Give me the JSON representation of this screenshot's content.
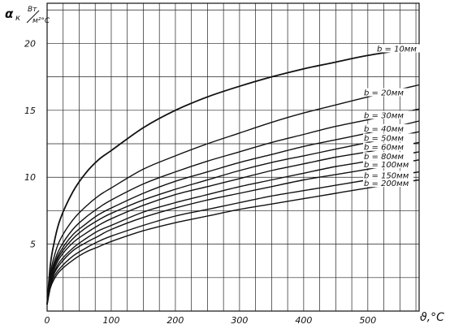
{
  "chart_data": {
    "type": "line",
    "ylabel_symbol": "α",
    "ylabel_sub": "к",
    "ylabel_unit_num": "Вт",
    "ylabel_unit_den": "м²°С",
    "xlabel": "ϑ,°С",
    "xlim": [
      0,
      580
    ],
    "ylim": [
      0,
      23
    ],
    "x_ticks": [
      0,
      100,
      200,
      300,
      400,
      500
    ],
    "y_ticks": [
      5,
      10,
      15,
      20
    ],
    "grid": true,
    "x": [
      0,
      5,
      10,
      20,
      40,
      60,
      80,
      100,
      150,
      200,
      250,
      300,
      350,
      400,
      450,
      500,
      580
    ],
    "series": [
      {
        "name": "b = 10мм",
        "values": [
          0.5,
          3.4,
          4.9,
          6.8,
          8.9,
          10.3,
          11.3,
          12.0,
          13.7,
          15.0,
          16.0,
          16.8,
          17.5,
          18.1,
          18.6,
          19.1,
          19.7
        ]
      },
      {
        "name": "b = 20мм",
        "values": [
          0.5,
          2.7,
          3.9,
          5.3,
          6.8,
          7.8,
          8.6,
          9.2,
          10.6,
          11.6,
          12.5,
          13.3,
          14.1,
          14.8,
          15.4,
          16.0,
          16.9
        ]
      },
      {
        "name": "b = 30мм",
        "values": [
          0.5,
          2.4,
          3.5,
          4.7,
          6.1,
          7.0,
          7.7,
          8.3,
          9.5,
          10.4,
          11.2,
          11.9,
          12.6,
          13.2,
          13.8,
          14.3,
          15.1
        ]
      },
      {
        "name": "b = 40мм",
        "values": [
          0.5,
          2.3,
          3.3,
          4.4,
          5.7,
          6.5,
          7.2,
          7.7,
          8.8,
          9.7,
          10.4,
          11.1,
          11.7,
          12.3,
          12.8,
          13.3,
          14.2
        ]
      },
      {
        "name": "b = 50мм",
        "values": [
          0.5,
          2.2,
          3.2,
          4.2,
          5.4,
          6.2,
          6.8,
          7.3,
          8.3,
          9.1,
          9.8,
          10.5,
          11.1,
          11.6,
          12.1,
          12.6,
          13.4
        ]
      },
      {
        "name": "b = 60мм",
        "values": [
          0.5,
          2.1,
          3.0,
          4.0,
          5.1,
          5.8,
          6.4,
          6.9,
          7.9,
          8.7,
          9.3,
          9.9,
          10.5,
          11.0,
          11.5,
          11.9,
          12.6
        ]
      },
      {
        "name": "b = 80мм",
        "values": [
          0.5,
          2.0,
          2.8,
          3.7,
          4.7,
          5.4,
          6.0,
          6.4,
          7.4,
          8.1,
          8.7,
          9.3,
          9.8,
          10.3,
          10.8,
          11.2,
          11.9
        ]
      },
      {
        "name": "b = 100мм",
        "values": [
          0.5,
          1.9,
          2.7,
          3.5,
          4.5,
          5.1,
          5.6,
          6.1,
          7.0,
          7.7,
          8.3,
          8.8,
          9.3,
          9.8,
          10.2,
          10.6,
          11.3
        ]
      },
      {
        "name": "b = 150мм",
        "values": [
          0.5,
          1.8,
          2.5,
          3.2,
          4.1,
          4.7,
          5.2,
          5.6,
          6.4,
          7.1,
          7.6,
          8.1,
          8.6,
          9.0,
          9.4,
          9.8,
          10.4
        ]
      },
      {
        "name": "b = 200мм",
        "values": [
          0.5,
          1.7,
          2.3,
          3.0,
          3.8,
          4.4,
          4.8,
          5.2,
          6.0,
          6.6,
          7.1,
          7.6,
          8.0,
          8.4,
          8.8,
          9.2,
          9.8
        ]
      }
    ]
  }
}
